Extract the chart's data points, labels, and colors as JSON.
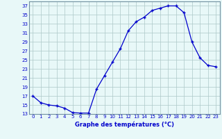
{
  "hours": [
    0,
    1,
    2,
    3,
    4,
    5,
    6,
    7,
    8,
    9,
    10,
    11,
    12,
    13,
    14,
    15,
    16,
    17,
    18,
    19,
    20,
    21,
    22,
    23
  ],
  "temps": [
    17,
    15.5,
    15,
    14.8,
    14.3,
    13.3,
    13.2,
    13.2,
    18.5,
    21.5,
    24.5,
    27.5,
    31.5,
    33.5,
    34.5,
    36.0,
    36.5,
    37.0,
    37.0,
    35.5,
    29.0,
    25.5,
    23.8,
    23.5
  ],
  "line_color": "#0000cc",
  "marker": "+",
  "marker_size": 3,
  "bg_color": "#e8f8f8",
  "grid_color": "#adc8c8",
  "xlabel": "Graphe des températures (°C)",
  "xlabel_color": "#0000cc",
  "tick_label_color": "#0000cc",
  "ylim": [
    13,
    38
  ],
  "yticks": [
    13,
    15,
    17,
    19,
    21,
    23,
    25,
    27,
    29,
    31,
    33,
    35,
    37
  ],
  "xlim": [
    -0.5,
    23.5
  ],
  "xticks": [
    0,
    1,
    2,
    3,
    4,
    5,
    6,
    7,
    8,
    9,
    10,
    11,
    12,
    13,
    14,
    15,
    16,
    17,
    18,
    19,
    20,
    21,
    22,
    23
  ]
}
